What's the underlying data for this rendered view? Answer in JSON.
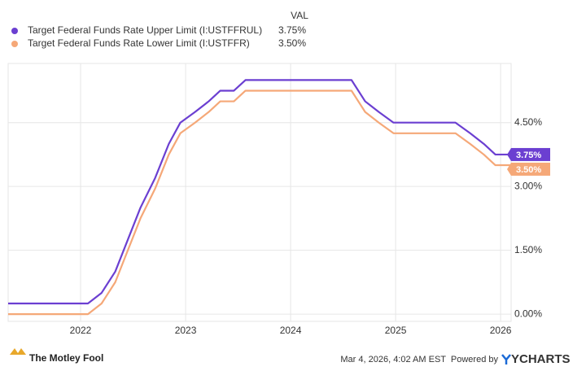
{
  "chart_data": {
    "type": "line",
    "value_header": "VAL",
    "x": [
      2021.31,
      2022.07,
      2022.2,
      2022.33,
      2022.45,
      2022.57,
      2022.71,
      2022.84,
      2022.95,
      2023.09,
      2023.22,
      2023.33,
      2023.46,
      2023.57,
      2024.58,
      2024.71,
      2024.84,
      2024.98,
      2025.57,
      2025.71,
      2025.84,
      2025.95,
      2026.1
    ],
    "series": [
      {
        "name": "Target Federal Funds Rate Upper Limit (I:USTFFRUL)",
        "color": "#6b3fd1",
        "latest_label": "3.75%",
        "values": [
          0.25,
          0.25,
          0.5,
          1.0,
          1.75,
          2.5,
          3.2,
          4.0,
          4.5,
          4.75,
          5.0,
          5.25,
          5.25,
          5.5,
          5.5,
          5.0,
          4.75,
          4.5,
          4.5,
          4.25,
          4.0,
          3.75,
          3.75
        ]
      },
      {
        "name": "Target Federal Funds Rate Lower Limit (I:USTFFR)",
        "color": "#f5a878",
        "latest_label": "3.50%",
        "values": [
          0.0,
          0.0,
          0.25,
          0.75,
          1.5,
          2.25,
          2.95,
          3.75,
          4.25,
          4.5,
          4.75,
          5.0,
          5.0,
          5.25,
          5.25,
          4.75,
          4.5,
          4.25,
          4.25,
          4.0,
          3.75,
          3.5,
          3.5
        ]
      }
    ],
    "xlim": [
      2021.31,
      2026.1
    ],
    "xticks": [
      2022,
      2023,
      2024,
      2025,
      2026
    ],
    "ylim": [
      -0.17,
      5.89
    ],
    "yticks": [
      {
        "value": 0,
        "label": "0.00%"
      },
      {
        "value": 1.5,
        "label": "1.50%"
      },
      {
        "value": 3,
        "label": "3.00%"
      },
      {
        "value": 4.5,
        "label": "4.50%"
      }
    ],
    "grid": true,
    "source": {
      "logo": "The Motley Fool",
      "timestamp": "Mar 4, 2026, 4:02 AM EST",
      "powered_by": "Powered by",
      "brand": "YCHARTS"
    }
  }
}
